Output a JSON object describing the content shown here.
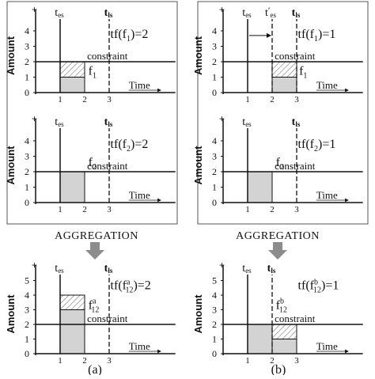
{
  "colors": {
    "line": "#111111",
    "frame": "#555555",
    "fill": "#d3d3d3",
    "hatch": "#777777",
    "arrow": "#8c8c8c"
  },
  "aggregation_label": "AGGREGATION",
  "panels": [
    {
      "id": "a1",
      "ylabel": "Amount",
      "tes": 1,
      "tls": 3,
      "tes_label": "t",
      "tes_sub": "es",
      "tls_label": "t",
      "tls_sub": "ls",
      "tf_text": "tf(f",
      "tf_sub": "1",
      "tf_sup": "",
      "tf_value": ")=2",
      "f_label": "f",
      "f_sub": "1",
      "f_sup": "",
      "constraint_label": "constraint",
      "time_label": "Time",
      "constraint": 2,
      "blocks": [
        {
          "x0": 1,
          "x1": 2,
          "y0": 0,
          "y1": 1,
          "style": "solid"
        },
        {
          "x0": 1,
          "x1": 2,
          "y0": 1,
          "y1": 2,
          "style": "hatch"
        }
      ],
      "yticks": [
        "0",
        "1",
        "2",
        "3",
        "4"
      ],
      "xticks": [
        "1",
        "2",
        "3"
      ],
      "shift": false
    },
    {
      "id": "a2",
      "ylabel": "Amount",
      "tes": 1,
      "tls": 3,
      "tes_label": "t",
      "tes_sub": "es",
      "tls_label": "t",
      "tls_sub": "ls",
      "tf_text": "tf(f",
      "tf_sub": "2",
      "tf_sup": "",
      "tf_value": ")=2",
      "f_label": "f",
      "f_sub": "2",
      "f_sup": "",
      "constraint_label": "constraint",
      "time_label": "Time",
      "constraint": 2,
      "blocks": [
        {
          "x0": 1,
          "x1": 2,
          "y0": 0,
          "y1": 2,
          "style": "solid"
        }
      ],
      "yticks": [
        "0",
        "1",
        "2",
        "3",
        "4"
      ],
      "xticks": [
        "1",
        "2",
        "3"
      ],
      "shift": false
    },
    {
      "id": "b1",
      "ylabel": "Amount",
      "tes": 1,
      "tls": 3,
      "tes_label": "t",
      "tes_sub": "es",
      "tls_label": "t",
      "tls_sub": "ls",
      "tes_prime_label": "t",
      "tes_prime_sub": "es",
      "tes_prime_mark": "′",
      "tf_text": "tf(f",
      "tf_sub": "1",
      "tf_sup": "",
      "tf_value": ")=1",
      "f_label": "f",
      "f_sub": "1",
      "f_sup": "",
      "constraint_label": "constraint",
      "time_label": "Time",
      "constraint": 2,
      "blocks": [
        {
          "x0": 2,
          "x1": 3,
          "y0": 0,
          "y1": 1,
          "style": "solid"
        },
        {
          "x0": 2,
          "x1": 3,
          "y0": 1,
          "y1": 2,
          "style": "hatch"
        }
      ],
      "yticks": [
        "0",
        "1",
        "2",
        "3",
        "4"
      ],
      "xticks": [
        "1",
        "2",
        "3"
      ],
      "shift": true
    },
    {
      "id": "b2",
      "ylabel": "Amount",
      "tes": 1,
      "tls": 3,
      "tes_label": "t",
      "tes_sub": "es",
      "tls_label": "t",
      "tls_sub": "ls",
      "tf_text": "tf(f",
      "tf_sub": "2",
      "tf_sup": "",
      "tf_value": ")=1",
      "f_label": "f",
      "f_sub": "2",
      "f_sup": "",
      "constraint_label": "constraint",
      "time_label": "Time",
      "constraint": 2,
      "blocks": [
        {
          "x0": 1,
          "x1": 2,
          "y0": 0,
          "y1": 2,
          "style": "solid"
        }
      ],
      "yticks": [
        "0",
        "1",
        "2",
        "3",
        "4"
      ],
      "xticks": [
        "1",
        "2",
        "3"
      ],
      "shift": false
    },
    {
      "id": "a3",
      "ylabel": "Amount",
      "tes": 1,
      "tls": 3,
      "tes_label": "t",
      "tes_sub": "es",
      "tls_label": "t",
      "tls_sub": "ls",
      "tf_text": "tf(f",
      "tf_sub": "12",
      "tf_sup": "a",
      "tf_value": ")=2",
      "f_label": "f",
      "f_sub": "12",
      "f_sup": "a",
      "constraint_label": "constraint",
      "time_label": "Time",
      "constraint": 2,
      "blocks": [
        {
          "x0": 1,
          "x1": 2,
          "y0": 0,
          "y1": 3,
          "style": "solid"
        },
        {
          "x0": 1,
          "x1": 2,
          "y0": 3,
          "y1": 4,
          "style": "hatch"
        }
      ],
      "yticks": [
        "0",
        "1",
        "2",
        "3",
        "4",
        "5"
      ],
      "xticks": [
        "1",
        "2",
        "3"
      ],
      "shift": false
    },
    {
      "id": "b3",
      "ylabel": "Amount",
      "tes": 1,
      "tls": 2,
      "tes_label": "t",
      "tes_sub": "es",
      "tls_label": "t",
      "tls_sub": "ls",
      "tf_text": "tf(f",
      "tf_sub": "12",
      "tf_sup": "b",
      "tf_value": ")=1",
      "f_label": "f",
      "f_sub": "12",
      "f_sup": "b",
      "constraint_label": "constraint",
      "time_label": "Time",
      "constraint": 2,
      "blocks": [
        {
          "x0": 1,
          "x1": 2,
          "y0": 0,
          "y1": 2,
          "style": "solid"
        },
        {
          "x0": 2,
          "x1": 3,
          "y0": 0,
          "y1": 1,
          "style": "solid"
        },
        {
          "x0": 2,
          "x1": 3,
          "y0": 1,
          "y1": 2,
          "style": "hatch"
        }
      ],
      "yticks": [
        "0",
        "1",
        "2",
        "3",
        "4",
        "5"
      ],
      "xticks": [
        "1",
        "2",
        "3"
      ],
      "shift": false
    }
  ],
  "captions": {
    "a": "(a)",
    "b": "(b)"
  }
}
